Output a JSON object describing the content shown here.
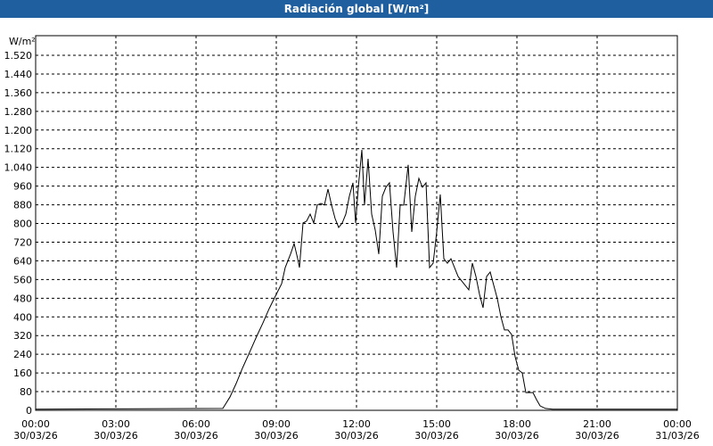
{
  "chart_data": {
    "type": "line",
    "title": "Radiación global [W/m²]",
    "y_label": "W/m²",
    "x": [
      0,
      7.0,
      7.267,
      7.5,
      7.733,
      8.0,
      8.267,
      8.5,
      8.733,
      9.0,
      9.2,
      9.333,
      9.533,
      9.667,
      9.8,
      9.867,
      10.0,
      10.133,
      10.267,
      10.4,
      10.533,
      10.667,
      10.8,
      10.933,
      11.067,
      11.2,
      11.333,
      11.467,
      11.6,
      11.733,
      11.867,
      11.967,
      12.067,
      12.2,
      12.3,
      12.433,
      12.567,
      12.7,
      12.833,
      12.967,
      13.1,
      13.233,
      13.367,
      13.5,
      13.633,
      13.767,
      13.933,
      14.067,
      14.2,
      14.333,
      14.467,
      14.6,
      14.733,
      14.867,
      15.0,
      15.133,
      15.267,
      15.4,
      15.533,
      15.667,
      15.8,
      15.933,
      16.067,
      16.2,
      16.333,
      16.467,
      16.6,
      16.733,
      16.867,
      17.0,
      17.133,
      17.267,
      17.4,
      17.533,
      17.667,
      17.8,
      17.933,
      18.067,
      18.2,
      18.333,
      18.467,
      18.6,
      18.733,
      18.867,
      19.067,
      19.333,
      24
    ],
    "series": [
      {
        "name": "Radiación global",
        "color": "#000000",
        "values": [
          5,
          8,
          57,
          115,
          180,
          248,
          317,
          374,
          435,
          497,
          542,
          611,
          669,
          714,
          649,
          611,
          802,
          810,
          840,
          802,
          879,
          886,
          879,
          947,
          879,
          821,
          783,
          802,
          840,
          917,
          974,
          802,
          955,
          1115,
          879,
          1077,
          840,
          772,
          669,
          917,
          955,
          974,
          764,
          611,
          879,
          879,
          1051,
          764,
          917,
          993,
          955,
          974,
          611,
          630,
          764,
          924,
          649,
          630,
          649,
          611,
          573,
          554,
          535,
          516,
          630,
          573,
          497,
          439,
          573,
          592,
          535,
          478,
          401,
          344,
          344,
          325,
          229,
          172,
          160,
          76,
          76,
          76,
          46,
          19,
          8,
          5,
          5
        ]
      }
    ],
    "xlim": [
      0,
      24
    ],
    "xticks": [
      {
        "value": 0,
        "label": "00:00\n30/03/26"
      },
      {
        "value": 3,
        "label": "03:00\n30/03/26"
      },
      {
        "value": 6,
        "label": "06:00\n30/03/26"
      },
      {
        "value": 9,
        "label": "09:00\n30/03/26"
      },
      {
        "value": 12,
        "label": "12:00\n30/03/26"
      },
      {
        "value": 15,
        "label": "15:00\n30/03/26"
      },
      {
        "value": 18,
        "label": "18:00\n30/03/26"
      },
      {
        "value": 21,
        "label": "21:00\n30/03/26"
      },
      {
        "value": 24,
        "label": "00:00\n31/03/26"
      }
    ],
    "ylim": [
      0,
      1604
    ],
    "yticks": [
      0,
      80,
      160,
      240,
      320,
      400,
      480,
      560,
      640,
      720,
      800,
      880,
      960,
      {
        "value": 1040,
        "label": "1.040"
      },
      {
        "value": 1120,
        "label": "1.120"
      },
      {
        "value": 1200,
        "label": "1.200"
      },
      {
        "value": 1280,
        "label": "1.280"
      },
      {
        "value": 1360,
        "label": "1.360"
      },
      {
        "value": 1440,
        "label": "1.440"
      },
      {
        "value": 1520,
        "label": "1.520"
      }
    ],
    "grid": true
  }
}
